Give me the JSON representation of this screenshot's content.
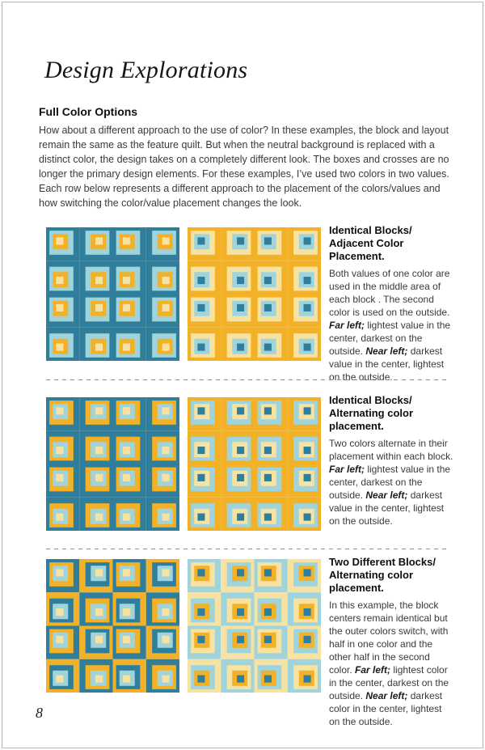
{
  "title": "Design Explorations",
  "heading": "Full Color Options",
  "intro": "How about a different approach to the use of color?  In these examples, the block and layout remain the same as the feature quilt. But when the neutral background is replaced with a distinct color, the design takes on a completely different look. The boxes and crosses are no longer the primary design elements. For these examples, I’ve used two colors in two values. Each row below represents a different approach to the placement of the colors/values and how switching the color/value placement changes the look.",
  "page_number": "8",
  "palette": {
    "darkTeal": "#2f7f9c",
    "lightBlue": "#9fd4dc",
    "gold": "#f2b127",
    "paleYellow": "#f8e2a2"
  },
  "rows": [
    {
      "title_line1": "Identical Blocks/",
      "title_line2": "Adjacent Color Placement.",
      "body_runs": [
        {
          "t": "Both values of one color are used in the middle area of each block . The second color is used on the outside. ",
          "s": "n"
        },
        {
          "t": "Far left;",
          "s": "bi"
        },
        {
          "t": " lightest value in the center, darkest on the outside. ",
          "s": "n"
        },
        {
          "t": "Near left;",
          "s": "bi"
        },
        {
          "t": " darkest value in the center, lightest on the outside.",
          "s": "n"
        }
      ],
      "quilts": [
        {
          "name": "row1-far-left",
          "checker": false,
          "blockA": [
            "darkTeal",
            "lightBlue",
            "gold",
            "paleYellow"
          ],
          "blockB": null
        },
        {
          "name": "row1-near-left",
          "checker": false,
          "blockA": [
            "gold",
            "paleYellow",
            "lightBlue",
            "darkTeal"
          ],
          "blockB": null
        }
      ]
    },
    {
      "title_line1": "Identical Blocks/",
      "title_line2": "Alternating color placement.",
      "body_runs": [
        {
          "t": "Two colors alternate in their placement within each block. ",
          "s": "n"
        },
        {
          "t": "Far left;",
          "s": "bi"
        },
        {
          "t": " lightest value in the center, darkest on the outside. ",
          "s": "n"
        },
        {
          "t": "Near left;",
          "s": "bi"
        },
        {
          "t": "  darkest value in the center, lightest on the outside.",
          "s": "n"
        }
      ],
      "quilts": [
        {
          "name": "row2-far-left",
          "checker": false,
          "blockA": [
            "darkTeal",
            "gold",
            "lightBlue",
            "paleYellow"
          ],
          "blockB": null
        },
        {
          "name": "row2-near-left",
          "checker": false,
          "blockA": [
            "gold",
            "lightBlue",
            "paleYellow",
            "darkTeal"
          ],
          "blockB": null
        }
      ]
    },
    {
      "title_line1": "Two Different Blocks/",
      "title_line2": "Alternating color placement.",
      "body_runs": [
        {
          "t": "In this example, the block centers remain identical but the outer colors switch, with half in one color and the other half in the second color.  ",
          "s": "n"
        },
        {
          "t": "Far left;",
          "s": "bi"
        },
        {
          "t": " lightest color in the center, darkest on the outside.  ",
          "s": "n"
        },
        {
          "t": "Near left;",
          "s": "bi"
        },
        {
          "t": " darkest color in the center, lightest on the outside.",
          "s": "n"
        }
      ],
      "quilts": [
        {
          "name": "row3-far-left",
          "checker": true,
          "blockA": [
            "darkTeal",
            "gold",
            "lightBlue",
            "paleYellow"
          ],
          "blockB": [
            "gold",
            "darkTeal",
            "lightBlue",
            "paleYellow"
          ]
        },
        {
          "name": "row3-near-left",
          "checker": true,
          "blockA": [
            "lightBlue",
            "paleYellow",
            "gold",
            "darkTeal"
          ],
          "blockB": [
            "paleYellow",
            "lightBlue",
            "gold",
            "darkTeal"
          ]
        }
      ]
    }
  ]
}
